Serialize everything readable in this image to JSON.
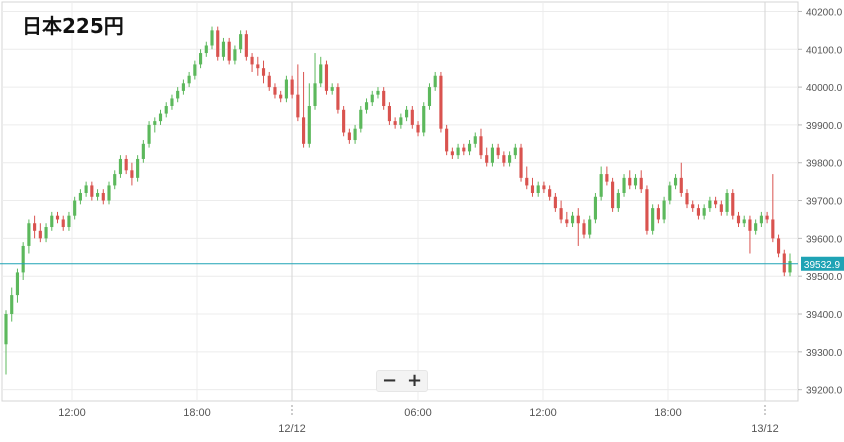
{
  "title": "日本225円",
  "zoom": {
    "minus": "−",
    "plus": "+"
  },
  "colors": {
    "up": "#5cb85c",
    "down": "#d9534f",
    "price_line": "#1fa3b5",
    "price_tag": "#1fa3b5",
    "grid": "#ececec",
    "axis_text": "#555555"
  },
  "chart_data": {
    "type": "candlestick",
    "title": "日本225円",
    "current_price": 39532.9,
    "current_price_label": "39532.9",
    "y_ticks": [
      "39200.0",
      "39300.0",
      "39400.0",
      "39500.0",
      "39600.0",
      "39700.0",
      "39800.0",
      "39900.0",
      "40000.0",
      "40100.0",
      "40200.0"
    ],
    "ylim": [
      39170,
      40225
    ],
    "x_ticks": [
      "12:00",
      "18:00",
      "12/12",
      "06:00",
      "12:00",
      "18:00",
      "13/12"
    ],
    "grid": true,
    "candles": [
      [
        39320,
        39400,
        39240,
        39410
      ],
      [
        39400,
        39450,
        39380,
        39470
      ],
      [
        39450,
        39510,
        39430,
        39520
      ],
      [
        39510,
        39580,
        39490,
        39590
      ],
      [
        39580,
        39640,
        39560,
        39650
      ],
      [
        39640,
        39620,
        39600,
        39660
      ],
      [
        39620,
        39600,
        39590,
        39640
      ],
      [
        39600,
        39630,
        39590,
        39640
      ],
      [
        39630,
        39660,
        39620,
        39670
      ],
      [
        39660,
        39650,
        39640,
        39670
      ],
      [
        39650,
        39630,
        39620,
        39660
      ],
      [
        39630,
        39660,
        39620,
        39670
      ],
      [
        39660,
        39700,
        39650,
        39710
      ],
      [
        39700,
        39720,
        39690,
        39730
      ],
      [
        39720,
        39740,
        39710,
        39750
      ],
      [
        39740,
        39710,
        39700,
        39750
      ],
      [
        39710,
        39720,
        39700,
        39730
      ],
      [
        39720,
        39700,
        39690,
        39730
      ],
      [
        39700,
        39740,
        39690,
        39750
      ],
      [
        39740,
        39770,
        39730,
        39780
      ],
      [
        39770,
        39810,
        39760,
        39820
      ],
      [
        39810,
        39780,
        39770,
        39820
      ],
      [
        39780,
        39760,
        39740,
        39800
      ],
      [
        39760,
        39810,
        39750,
        39820
      ],
      [
        39810,
        39850,
        39800,
        39860
      ],
      [
        39850,
        39900,
        39840,
        39910
      ],
      [
        39900,
        39910,
        39880,
        39920
      ],
      [
        39910,
        39930,
        39900,
        39940
      ],
      [
        39930,
        39950,
        39920,
        39960
      ],
      [
        39950,
        39970,
        39940,
        39980
      ],
      [
        39970,
        39990,
        39960,
        40000
      ],
      [
        39990,
        40010,
        39980,
        40020
      ],
      [
        40010,
        40030,
        40000,
        40040
      ],
      [
        40030,
        40060,
        40020,
        40070
      ],
      [
        40060,
        40090,
        40050,
        40100
      ],
      [
        40090,
        40110,
        40080,
        40120
      ],
      [
        40110,
        40150,
        40100,
        40160
      ],
      [
        40150,
        40080,
        40070,
        40160
      ],
      [
        40080,
        40120,
        40070,
        40130
      ],
      [
        40120,
        40070,
        40060,
        40130
      ],
      [
        40070,
        40100,
        40060,
        40110
      ],
      [
        40100,
        40140,
        40090,
        40150
      ],
      [
        40140,
        40080,
        40070,
        40150
      ],
      [
        40080,
        40060,
        40040,
        40090
      ],
      [
        40060,
        40050,
        40030,
        40080
      ],
      [
        40050,
        40030,
        40010,
        40070
      ],
      [
        40030,
        40000,
        39990,
        40040
      ],
      [
        40000,
        39980,
        39970,
        40010
      ],
      [
        39980,
        39970,
        39960,
        39990
      ],
      [
        39970,
        40020,
        39960,
        40030
      ],
      [
        40020,
        39980,
        39970,
        40030
      ],
      [
        39980,
        39920,
        39910,
        40060
      ],
      [
        39920,
        39850,
        39840,
        40040
      ],
      [
        39850,
        39950,
        39840,
        40010
      ],
      [
        39950,
        40010,
        39940,
        40090
      ],
      [
        40010,
        40060,
        40000,
        40080
      ],
      [
        40060,
        39990,
        39980,
        40070
      ],
      [
        39990,
        40000,
        39980,
        40010
      ],
      [
        40000,
        39940,
        39930,
        40010
      ],
      [
        39940,
        39880,
        39870,
        39950
      ],
      [
        39880,
        39860,
        39850,
        39890
      ],
      [
        39860,
        39890,
        39850,
        39900
      ],
      [
        39890,
        39940,
        39880,
        39950
      ],
      [
        39940,
        39960,
        39930,
        39970
      ],
      [
        39960,
        39980,
        39950,
        39990
      ],
      [
        39980,
        39990,
        39970,
        40000
      ],
      [
        39990,
        39950,
        39940,
        40000
      ],
      [
        39950,
        39910,
        39900,
        39960
      ],
      [
        39910,
        39900,
        39890,
        39920
      ],
      [
        39900,
        39920,
        39890,
        39930
      ],
      [
        39920,
        39940,
        39910,
        39950
      ],
      [
        39940,
        39900,
        39890,
        39950
      ],
      [
        39900,
        39880,
        39870,
        39910
      ],
      [
        39880,
        39950,
        39870,
        39960
      ],
      [
        39950,
        40000,
        39940,
        40010
      ],
      [
        40000,
        40030,
        39990,
        40040
      ],
      [
        40030,
        39890,
        39880,
        40040
      ],
      [
        39890,
        39830,
        39820,
        39900
      ],
      [
        39830,
        39820,
        39810,
        39840
      ],
      [
        39820,
        39840,
        39810,
        39850
      ],
      [
        39840,
        39830,
        39820,
        39850
      ],
      [
        39830,
        39850,
        39820,
        39860
      ],
      [
        39850,
        39870,
        39840,
        39880
      ],
      [
        39870,
        39820,
        39810,
        39890
      ],
      [
        39820,
        39800,
        39790,
        39840
      ],
      [
        39800,
        39840,
        39790,
        39850
      ],
      [
        39840,
        39820,
        39810,
        39850
      ],
      [
        39820,
        39800,
        39790,
        39830
      ],
      [
        39800,
        39820,
        39790,
        39830
      ],
      [
        39820,
        39840,
        39810,
        39850
      ],
      [
        39840,
        39760,
        39750,
        39850
      ],
      [
        39760,
        39740,
        39730,
        39790
      ],
      [
        39740,
        39720,
        39710,
        39760
      ],
      [
        39720,
        39740,
        39710,
        39750
      ],
      [
        39740,
        39730,
        39720,
        39750
      ],
      [
        39730,
        39710,
        39700,
        39740
      ],
      [
        39710,
        39680,
        39670,
        39720
      ],
      [
        39680,
        39650,
        39640,
        39700
      ],
      [
        39650,
        39640,
        39630,
        39670
      ],
      [
        39640,
        39660,
        39630,
        39670
      ],
      [
        39660,
        39640,
        39580,
        39680
      ],
      [
        39640,
        39610,
        39600,
        39650
      ],
      [
        39610,
        39650,
        39600,
        39660
      ],
      [
        39650,
        39710,
        39640,
        39720
      ],
      [
        39710,
        39770,
        39700,
        39790
      ],
      [
        39770,
        39750,
        39740,
        39790
      ],
      [
        39750,
        39680,
        39670,
        39760
      ],
      [
        39680,
        39720,
        39670,
        39730
      ],
      [
        39720,
        39760,
        39710,
        39770
      ],
      [
        39760,
        39740,
        39730,
        39780
      ],
      [
        39740,
        39760,
        39730,
        39770
      ],
      [
        39760,
        39730,
        39720,
        39780
      ],
      [
        39730,
        39620,
        39610,
        39740
      ],
      [
        39620,
        39680,
        39610,
        39690
      ],
      [
        39680,
        39650,
        39640,
        39690
      ],
      [
        39650,
        39700,
        39640,
        39710
      ],
      [
        39700,
        39740,
        39690,
        39750
      ],
      [
        39740,
        39760,
        39730,
        39770
      ],
      [
        39760,
        39720,
        39710,
        39800
      ],
      [
        39720,
        39690,
        39680,
        39730
      ],
      [
        39690,
        39680,
        39670,
        39700
      ],
      [
        39680,
        39660,
        39650,
        39690
      ],
      [
        39660,
        39680,
        39650,
        39690
      ],
      [
        39680,
        39700,
        39670,
        39710
      ],
      [
        39700,
        39690,
        39680,
        39710
      ],
      [
        39690,
        39670,
        39660,
        39700
      ],
      [
        39670,
        39720,
        39660,
        39730
      ],
      [
        39720,
        39660,
        39650,
        39730
      ],
      [
        39660,
        39640,
        39630,
        39670
      ],
      [
        39640,
        39650,
        39630,
        39660
      ],
      [
        39650,
        39620,
        39560,
        39660
      ],
      [
        39620,
        39640,
        39610,
        39650
      ],
      [
        39640,
        39660,
        39630,
        39670
      ],
      [
        39660,
        39650,
        39640,
        39670
      ],
      [
        39650,
        39600,
        39590,
        39770
      ],
      [
        39600,
        39560,
        39550,
        39610
      ],
      [
        39560,
        39510,
        39500,
        39570
      ],
      [
        39510,
        39540,
        39500,
        39560
      ]
    ]
  }
}
